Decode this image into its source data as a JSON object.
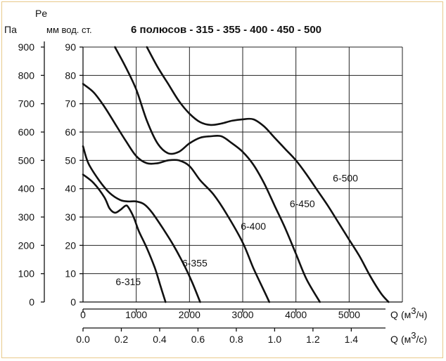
{
  "chart_data": {
    "type": "line",
    "title": "6 полюсов - 315 - 355 - 400 - 450 - 500",
    "y_label_top": "Pe",
    "y_unit_pa": "Па",
    "y_unit_mm": "мм вод. ст.",
    "x_label_q": "Q",
    "x_unit_m3h": "(м",
    "x_unit_m3h_sup": "3",
    "x_unit_m3h_end": "/ч)",
    "x_unit_m3s": "(м",
    "x_unit_m3s_sup": "3",
    "x_unit_m3s_end": "/с)",
    "xlim": [
      0,
      6000
    ],
    "ylim_mm": [
      0,
      90
    ],
    "ylim_pa": [
      0,
      900
    ],
    "x_ticks_m3h": [
      "0",
      "1000",
      "2000",
      "3000",
      "4000",
      "5000"
    ],
    "x_ticks_m3h_values": [
      0,
      1000,
      2000,
      3000,
      4000,
      5000
    ],
    "x_ticks_m3s": [
      "0.0",
      "0.2",
      "0.4",
      "0.6",
      "0.8",
      "1.0",
      "1.2",
      "1.4"
    ],
    "x_ticks_m3s_values": [
      0.0,
      0.2,
      0.4,
      0.6,
      0.8,
      1.0,
      1.2,
      1.4
    ],
    "y_ticks_mm": [
      "0",
      "10",
      "20",
      "30",
      "40",
      "50",
      "60",
      "70",
      "80",
      "90"
    ],
    "y_ticks_mm_values": [
      0,
      10,
      20,
      30,
      40,
      50,
      60,
      70,
      80,
      90
    ],
    "y_ticks_pa": [
      "0",
      "100",
      "200",
      "300",
      "400",
      "500",
      "600",
      "700",
      "800",
      "900"
    ],
    "y_ticks_pa_values": [
      0,
      100,
      200,
      300,
      400,
      500,
      600,
      700,
      800,
      900
    ],
    "grid": true,
    "series": [
      {
        "name": "6-315",
        "label_at": [
          850,
          6
        ],
        "points": [
          [
            0,
            45
          ],
          [
            200,
            42
          ],
          [
            400,
            37
          ],
          [
            500,
            33
          ],
          [
            600,
            31.5
          ],
          [
            700,
            32.5
          ],
          [
            800,
            34
          ],
          [
            850,
            33.5
          ],
          [
            950,
            30
          ],
          [
            1050,
            25
          ],
          [
            1200,
            19
          ],
          [
            1350,
            12
          ],
          [
            1450,
            6
          ],
          [
            1550,
            0
          ]
        ]
      },
      {
        "name": "6-355",
        "label_at": [
          2100,
          12.5
        ],
        "points": [
          [
            0,
            55
          ],
          [
            100,
            49
          ],
          [
            300,
            43
          ],
          [
            500,
            38.5
          ],
          [
            700,
            36
          ],
          [
            850,
            35.5
          ],
          [
            1000,
            35.5
          ],
          [
            1150,
            34.5
          ],
          [
            1300,
            31.5
          ],
          [
            1500,
            26
          ],
          [
            1700,
            20
          ],
          [
            1900,
            13
          ],
          [
            2050,
            7
          ],
          [
            2200,
            0
          ]
        ]
      },
      {
        "name": "6-400",
        "label_at": [
          3200,
          25.5
        ],
        "points": [
          [
            0,
            77
          ],
          [
            200,
            74
          ],
          [
            400,
            69
          ],
          [
            600,
            63
          ],
          [
            800,
            57
          ],
          [
            1000,
            51.5
          ],
          [
            1200,
            49
          ],
          [
            1400,
            49
          ],
          [
            1600,
            50
          ],
          [
            1800,
            50
          ],
          [
            2000,
            48
          ],
          [
            2200,
            43
          ],
          [
            2450,
            38
          ],
          [
            2700,
            31
          ],
          [
            3000,
            21
          ],
          [
            3200,
            12
          ],
          [
            3400,
            4
          ],
          [
            3500,
            0
          ]
        ]
      },
      {
        "name": "6-450",
        "label_at": [
          4120,
          33.5
        ],
        "points": [
          [
            600,
            90
          ],
          [
            800,
            83
          ],
          [
            1000,
            75
          ],
          [
            1200,
            64
          ],
          [
            1400,
            56
          ],
          [
            1600,
            52.5
          ],
          [
            1800,
            53
          ],
          [
            2000,
            56
          ],
          [
            2200,
            58
          ],
          [
            2400,
            58.5
          ],
          [
            2600,
            58.5
          ],
          [
            2800,
            56
          ],
          [
            3000,
            53
          ],
          [
            3200,
            48.5
          ],
          [
            3400,
            42
          ],
          [
            3600,
            34
          ],
          [
            3800,
            26
          ],
          [
            4000,
            17
          ],
          [
            4200,
            8
          ],
          [
            4450,
            0
          ]
        ]
      },
      {
        "name": "6-500",
        "label_at": [
          4930,
          42.5
        ],
        "points": [
          [
            1200,
            90
          ],
          [
            1400,
            83
          ],
          [
            1600,
            77
          ],
          [
            1800,
            71
          ],
          [
            2000,
            66.5
          ],
          [
            2200,
            63.5
          ],
          [
            2400,
            62.5
          ],
          [
            2600,
            63
          ],
          [
            2800,
            64
          ],
          [
            3000,
            64.5
          ],
          [
            3200,
            64.5
          ],
          [
            3400,
            62
          ],
          [
            3600,
            58
          ],
          [
            3800,
            54
          ],
          [
            4000,
            50
          ],
          [
            4200,
            45
          ],
          [
            4400,
            39.5
          ],
          [
            4600,
            34
          ],
          [
            4800,
            28
          ],
          [
            5000,
            22
          ],
          [
            5200,
            16
          ],
          [
            5400,
            9
          ],
          [
            5600,
            3
          ],
          [
            5740,
            0
          ]
        ]
      }
    ]
  }
}
